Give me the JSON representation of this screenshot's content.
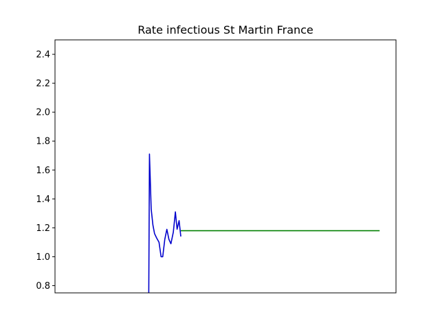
{
  "chart_data": {
    "type": "line",
    "title": "Rate infectious St Martin France",
    "xlabel": "",
    "ylabel": "",
    "ylim": [
      0.75,
      2.5
    ],
    "xlim": [
      0,
      100
    ],
    "yticks": [
      "0.8",
      "1.0",
      "1.2",
      "1.4",
      "1.6",
      "1.8",
      "2.0",
      "2.2",
      "2.4"
    ],
    "grid": false,
    "legend": "none",
    "series": [
      {
        "color": "#0000cc",
        "x": [
          27.5,
          27.7,
          28.2,
          28.7,
          29.2,
          29.8,
          30.5,
          31.1,
          31.6,
          32.2,
          32.8,
          33.4,
          34.0,
          34.7,
          35.3,
          35.8,
          36.4,
          36.9
        ],
        "y": [
          0.75,
          1.71,
          1.33,
          1.22,
          1.16,
          1.13,
          1.1,
          1.0,
          1.0,
          1.12,
          1.19,
          1.12,
          1.09,
          1.17,
          1.31,
          1.19,
          1.25,
          1.14
        ]
      },
      {
        "color": "#008000",
        "x": [
          36.9,
          95.2
        ],
        "y": [
          1.18,
          1.18
        ]
      }
    ]
  }
}
